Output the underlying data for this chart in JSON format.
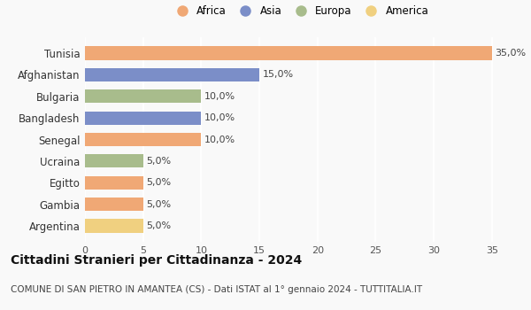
{
  "countries": [
    "Tunisia",
    "Afghanistan",
    "Bulgaria",
    "Bangladesh",
    "Senegal",
    "Ucraina",
    "Egitto",
    "Gambia",
    "Argentina"
  ],
  "values": [
    35.0,
    15.0,
    10.0,
    10.0,
    10.0,
    5.0,
    5.0,
    5.0,
    5.0
  ],
  "continents": [
    "Africa",
    "Asia",
    "Europa",
    "Asia",
    "Africa",
    "Europa",
    "Africa",
    "Africa",
    "America"
  ],
  "colors": {
    "Africa": "#F0A875",
    "Asia": "#7B8EC8",
    "Europa": "#A8BC8C",
    "America": "#F0D080"
  },
  "legend_order": [
    "Africa",
    "Asia",
    "Europa",
    "America"
  ],
  "xlim": [
    0,
    37
  ],
  "xticks": [
    0,
    5,
    10,
    15,
    20,
    25,
    30,
    35
  ],
  "title": "Cittadini Stranieri per Cittadinanza - 2024",
  "subtitle": "COMUNE DI SAN PIETRO IN AMANTEA (CS) - Dati ISTAT al 1° gennaio 2024 - TUTTITALIA.IT",
  "background_color": "#f9f9f9",
  "title_fontsize": 10,
  "subtitle_fontsize": 7.5
}
